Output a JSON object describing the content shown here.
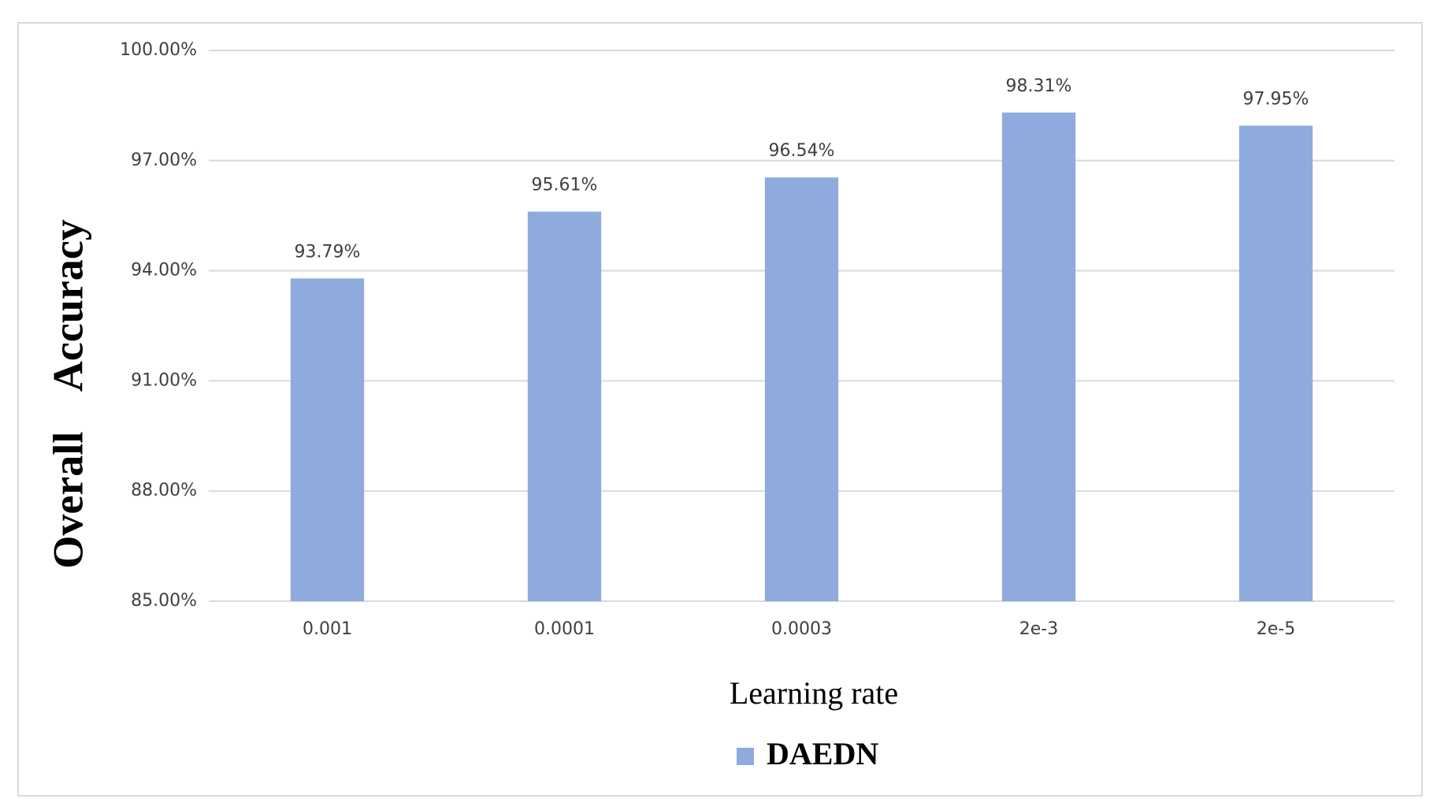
{
  "chart_data": {
    "type": "bar",
    "categories": [
      "0.001",
      "0.0001",
      "0.0003",
      "2e-3",
      "2e-5"
    ],
    "series": [
      {
        "name": "DAEDN",
        "color": "#8faadc",
        "values": [
          93.79,
          95.61,
          96.54,
          98.31,
          97.95
        ],
        "value_labels": [
          "93.79%",
          "95.61%",
          "96.54%",
          "98.31%",
          "97.95%"
        ]
      }
    ],
    "ylim": [
      85,
      100
    ],
    "yticks": [
      {
        "value": 85,
        "label": "85.00%"
      },
      {
        "value": 88,
        "label": "88.00%"
      },
      {
        "value": 91,
        "label": "91.00%"
      },
      {
        "value": 94,
        "label": "94.00%"
      },
      {
        "value": 97,
        "label": "97.00%"
      },
      {
        "value": 100,
        "label": "100.00%"
      }
    ],
    "xlabel": "Learning rate",
    "ylabel": "Overall Accuracy",
    "grid": true,
    "legend": "bottom"
  }
}
